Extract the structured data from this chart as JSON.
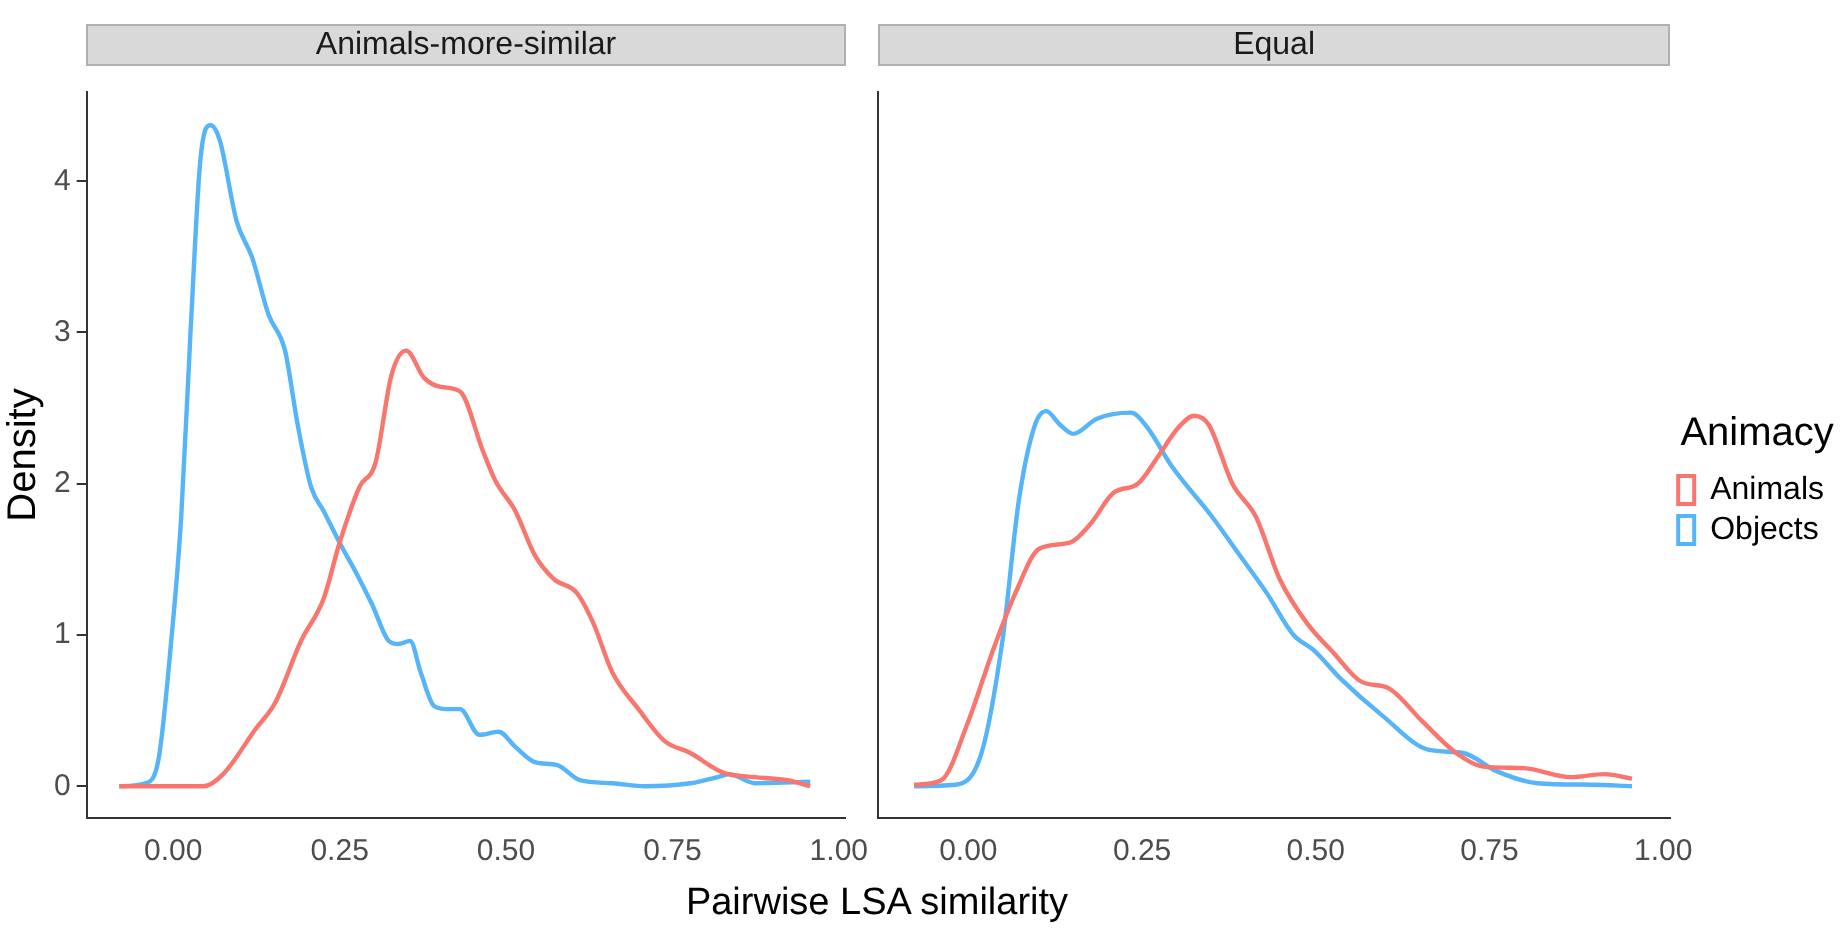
{
  "chart_data": [
    {
      "type": "line",
      "title": "Animals-more-similar",
      "xlabel": "Pairwise LSA similarity",
      "ylabel": "Density",
      "xlim": [
        -0.13,
        1.01
      ],
      "ylim": [
        -0.21,
        4.59
      ],
      "xticks": [
        {
          "value": 0,
          "label": "0.00"
        },
        {
          "value": 0.25,
          "label": "0.25"
        },
        {
          "value": 0.5,
          "label": "0.50"
        },
        {
          "value": 0.75,
          "label": "0.75"
        },
        {
          "value": 1,
          "label": "1.00"
        }
      ],
      "yticks": [
        0,
        1,
        2,
        3,
        4
      ],
      "grid": false,
      "legend": false,
      "marker": "none",
      "line_style": "solid",
      "series": [
        {
          "color": "#f8766d",
          "x": [
            -0.081,
            0.046,
            0.075,
            0.124,
            0.153,
            0.192,
            0.226,
            0.25,
            0.28,
            0.304,
            0.328,
            0.35,
            0.377,
            0.402,
            0.431,
            0.465,
            0.484,
            0.514,
            0.543,
            0.572,
            0.606,
            0.631,
            0.66,
            0.699,
            0.738,
            0.777,
            0.826,
            0.874,
            0.923,
            0.957
          ],
          "values": [
            0,
            0,
            0.08,
            0.38,
            0.55,
            0.96,
            1.24,
            1.61,
            1.98,
            2.14,
            2.72,
            2.88,
            2.7,
            2.64,
            2.61,
            2.22,
            2.02,
            1.82,
            1.53,
            1.37,
            1.28,
            1.08,
            0.75,
            0.51,
            0.3,
            0.22,
            0.09,
            0.06,
            0.04,
            0
          ]
        },
        {
          "color": "#56b4f9",
          "x": [
            -0.081,
            -0.042,
            -0.022,
            -0.003,
            0.012,
            0.026,
            0.041,
            0.056,
            0.07,
            0.095,
            0.119,
            0.143,
            0.168,
            0.187,
            0.207,
            0.226,
            0.25,
            0.275,
            0.299,
            0.324,
            0.338,
            0.356,
            0.372,
            0.392,
            0.411,
            0.431,
            0.46,
            0.489,
            0.514,
            0.543,
            0.577,
            0.611,
            0.66,
            0.709,
            0.777,
            0.826,
            0.835,
            0.874,
            0.957
          ],
          "values": [
            0,
            0.02,
            0.18,
            0.96,
            1.78,
            3.0,
            4.15,
            4.37,
            4.27,
            3.74,
            3.49,
            3.12,
            2.88,
            2.39,
            1.98,
            1.82,
            1.61,
            1.41,
            1.2,
            0.96,
            0.94,
            0.96,
            0.75,
            0.53,
            0.51,
            0.51,
            0.34,
            0.36,
            0.26,
            0.16,
            0.14,
            0.04,
            0.02,
            0,
            0.02,
            0.07,
            0.08,
            0.02,
            0.03
          ]
        }
      ]
    },
    {
      "type": "line",
      "title": "Equal",
      "legend_title": "Animacy",
      "xlim": [
        -0.13,
        1.01
      ],
      "ylim": [
        -0.21,
        4.59
      ],
      "xticks": [
        {
          "value": 0,
          "label": "0.00"
        },
        {
          "value": 0.25,
          "label": "0.25"
        },
        {
          "value": 0.5,
          "label": "0.50"
        },
        {
          "value": 0.75,
          "label": "0.75"
        },
        {
          "value": 1,
          "label": "1.00"
        }
      ],
      "yticks": [
        0,
        1,
        2,
        3,
        4
      ],
      "tick_labels": "x",
      "grid": false,
      "legend": "right",
      "marker": "none",
      "line_style": "solid",
      "series": [
        {
          "name": "Animals",
          "color": "#f8766d",
          "x": [
            -0.078,
            -0.039,
            0,
            0.034,
            0.068,
            0.102,
            0.146,
            0.175,
            0.209,
            0.244,
            0.273,
            0.302,
            0.325,
            0.346,
            0.38,
            0.414,
            0.448,
            0.487,
            0.526,
            0.566,
            0.604,
            0.653,
            0.702,
            0.741,
            0.799,
            0.867,
            0.916,
            0.955
          ],
          "values": [
            0.01,
            0.04,
            0.43,
            0.88,
            1.28,
            1.57,
            1.61,
            1.73,
            1.94,
            2.0,
            2.18,
            2.37,
            2.45,
            2.39,
            2.0,
            1.78,
            1.37,
            1.08,
            0.88,
            0.69,
            0.65,
            0.43,
            0.22,
            0.13,
            0.12,
            0.06,
            0.08,
            0.05
          ]
        },
        {
          "name": "Objects",
          "color": "#56b4f9",
          "x": [
            -0.078,
            -0.019,
            0.019,
            0.049,
            0.073,
            0.096,
            0.112,
            0.132,
            0.151,
            0.185,
            0.234,
            0.258,
            0.292,
            0.351,
            0.39,
            0.429,
            0.468,
            0.497,
            0.536,
            0.595,
            0.663,
            0.712,
            0.76,
            0.819,
            0.897,
            0.955
          ],
          "values": [
            0,
            0.01,
            0.22,
            0.96,
            1.9,
            2.39,
            2.48,
            2.39,
            2.33,
            2.43,
            2.47,
            2.37,
            2.12,
            1.78,
            1.53,
            1.28,
            1.0,
            0.9,
            0.71,
            0.47,
            0.24,
            0.22,
            0.1,
            0.02,
            0.01,
            0
          ]
        }
      ]
    }
  ]
}
